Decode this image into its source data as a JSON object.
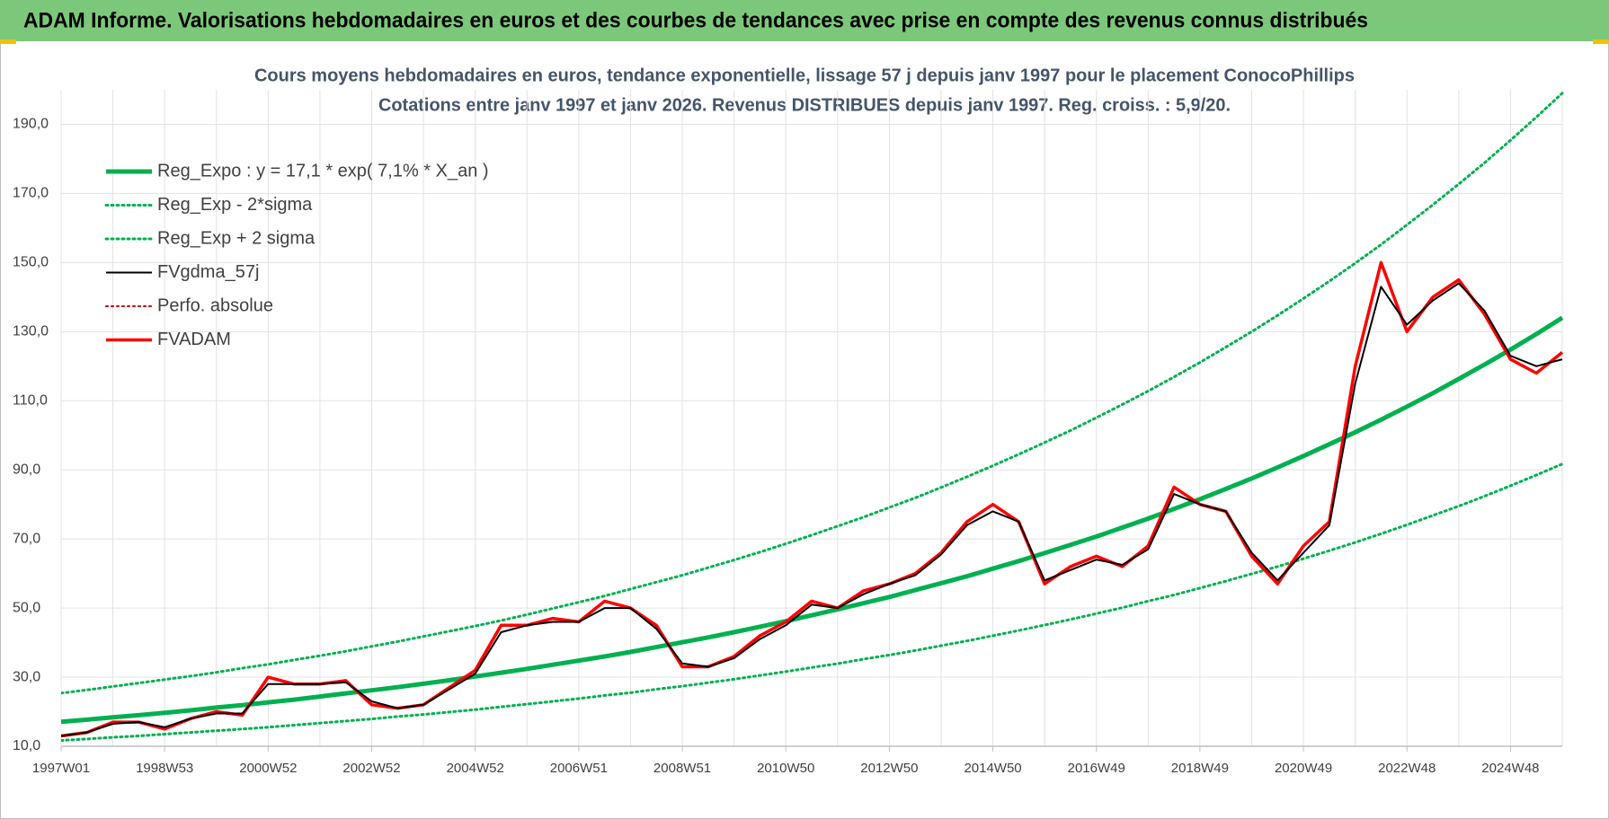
{
  "header": {
    "title": "ADAM Informe. Valorisations hebdomadaires en euros et des courbes de tendances avec prise en compte des revenus connus distribués"
  },
  "chart_data": {
    "type": "line",
    "title": "Cours moyens hebdomadaires en euros, tendance exponentielle, lissage 57 j depuis janv 1997 pour le placement ConocoPhillips",
    "subtitle": "Cotations entre janv 1997 et janv 2026. Revenus DISTRIBUES depuis janv 1997. Reg. croiss. : 5,9/20.",
    "categories": [
      "1997W01",
      null,
      null,
      null,
      "1998W53",
      null,
      null,
      null,
      "2000W52",
      null,
      null,
      null,
      "2002W52",
      null,
      null,
      null,
      "2004W52",
      null,
      null,
      null,
      "2006W51",
      null,
      null,
      null,
      "2008W51",
      null,
      null,
      null,
      "2010W50",
      null,
      null,
      null,
      "2012W50",
      null,
      null,
      null,
      "2014W50",
      null,
      null,
      null,
      "2016W49",
      null,
      null,
      null,
      "2018W49",
      null,
      null,
      null,
      "2020W49",
      null,
      null,
      null,
      "2022W48",
      null,
      null,
      null,
      "2024W48",
      null,
      null
    ],
    "ylim": [
      10,
      200
    ],
    "yticks": [
      {
        "value": 10,
        "label": "10,0"
      },
      {
        "value": 30,
        "label": "30,0"
      },
      {
        "value": 50,
        "label": "50,0"
      },
      {
        "value": 70,
        "label": "70,0"
      },
      {
        "value": 90,
        "label": "90,0"
      },
      {
        "value": 110,
        "label": "110,0"
      },
      {
        "value": 130,
        "label": "130,0"
      },
      {
        "value": 150,
        "label": "150,0"
      },
      {
        "value": 170,
        "label": "170,0"
      },
      {
        "value": 190,
        "label": "190,0"
      }
    ],
    "grid": true,
    "legend": "upper left",
    "series": [
      {
        "name": "Reg_Expo : y = 17,1 * exp( 7,1% *  X_an )",
        "color": "#00b050",
        "style": "solid",
        "values": [
          17.1,
          17.7,
          18.4,
          19.0,
          19.7,
          20.4,
          21.2,
          21.9,
          22.7,
          23.5,
          24.4,
          25.3,
          26.2,
          27.1,
          28.1,
          29.1,
          30.2,
          31.3,
          32.4,
          33.6,
          34.8,
          36.0,
          37.3,
          38.7,
          40.1,
          41.5,
          43.0,
          44.6,
          46.2,
          47.9,
          49.6,
          51.4,
          53.2,
          55.2,
          57.2,
          59.2,
          61.4,
          63.6,
          65.9,
          68.3,
          70.7,
          73.3,
          75.9,
          78.7,
          81.5,
          84.5,
          87.5,
          90.7,
          94.0,
          97.4,
          100.9,
          104.5,
          108.3,
          112.2,
          116.3,
          120.5,
          124.8,
          129.3,
          134.0
        ]
      },
      {
        "name": "Reg_Exp - 2*sigma",
        "color": "#00b050",
        "style": "dotted",
        "values": [
          11.7,
          12.1,
          12.6,
          13.0,
          13.5,
          14.0,
          14.5,
          15.0,
          15.5,
          16.1,
          16.7,
          17.3,
          17.9,
          18.6,
          19.2,
          19.9,
          20.6,
          21.4,
          22.2,
          23.0,
          23.8,
          24.7,
          25.5,
          26.5,
          27.4,
          28.4,
          29.4,
          30.5,
          31.6,
          32.8,
          33.9,
          35.2,
          36.4,
          37.7,
          39.1,
          40.5,
          42.0,
          43.5,
          45.1,
          46.7,
          48.4,
          50.1,
          52.0,
          53.8,
          55.8,
          57.8,
          59.9,
          62.0,
          64.3,
          66.6,
          69.0,
          71.5,
          74.1,
          76.8,
          79.5,
          82.4,
          85.4,
          88.5,
          91.7
        ]
      },
      {
        "name": "Reg_Exp + 2 sigma",
        "color": "#00b050",
        "style": "dotted",
        "values": [
          25.4,
          26.3,
          27.3,
          28.3,
          29.3,
          30.3,
          31.4,
          32.6,
          33.7,
          35.0,
          36.2,
          37.5,
          38.9,
          40.3,
          41.8,
          43.3,
          44.8,
          46.4,
          48.1,
          49.9,
          51.7,
          53.5,
          55.5,
          57.5,
          59.5,
          61.7,
          63.9,
          66.2,
          68.6,
          71.1,
          73.7,
          76.3,
          79.1,
          81.9,
          84.9,
          88.0,
          91.2,
          94.5,
          97.9,
          101.4,
          105.1,
          108.9,
          112.8,
          116.9,
          121.1,
          125.5,
          130.0,
          134.7,
          139.6,
          144.6,
          149.8,
          155.2,
          160.9,
          166.7,
          172.7,
          178.9,
          185.4,
          192.1,
          199.0
        ]
      },
      {
        "name": "FVgdma_57j",
        "color": "#000000",
        "style": "solid",
        "values": [
          13,
          14,
          16.5,
          17,
          15.5,
          18,
          19.5,
          19.5,
          28,
          28,
          28,
          28.5,
          23,
          21,
          22,
          26.5,
          31,
          43,
          45,
          46,
          46,
          50,
          50,
          44,
          34,
          33,
          35.5,
          41,
          45,
          51,
          50,
          54,
          57,
          59.5,
          65.5,
          74,
          78,
          75,
          58,
          61,
          64,
          62.5,
          67,
          83,
          80,
          78,
          66,
          58,
          66,
          74,
          115,
          143,
          132,
          139,
          144,
          136,
          123,
          120,
          122
        ]
      },
      {
        "name": "Perfo. absolue",
        "color": "#c00000",
        "style": "dotted",
        "values": [
          13,
          14,
          17,
          17,
          15,
          18,
          20,
          19,
          30,
          28,
          28,
          29,
          22,
          21,
          22,
          27,
          32,
          45,
          45,
          47,
          46,
          52,
          50,
          45,
          33,
          33,
          36,
          42,
          46,
          52,
          50,
          55,
          57,
          60,
          66,
          75,
          80,
          75,
          57,
          62,
          65,
          62,
          68,
          85,
          80,
          78,
          65,
          57,
          68,
          75,
          120,
          150,
          130,
          140,
          145,
          135,
          122,
          118,
          124
        ]
      },
      {
        "name": "FVADAM",
        "color": "#ff0000",
        "style": "solid",
        "values": [
          13,
          14,
          17,
          17,
          15,
          18,
          20,
          19,
          30,
          28,
          28,
          29,
          22,
          21,
          22,
          27,
          32,
          45,
          45,
          47,
          46,
          52,
          50,
          45,
          33,
          33,
          36,
          42,
          46,
          52,
          50,
          55,
          57,
          60,
          66,
          75,
          80,
          75,
          57,
          62,
          65,
          62,
          68,
          85,
          80,
          78,
          65,
          57,
          68,
          75,
          120,
          150,
          130,
          140,
          145,
          135,
          122,
          118,
          124
        ]
      }
    ]
  }
}
